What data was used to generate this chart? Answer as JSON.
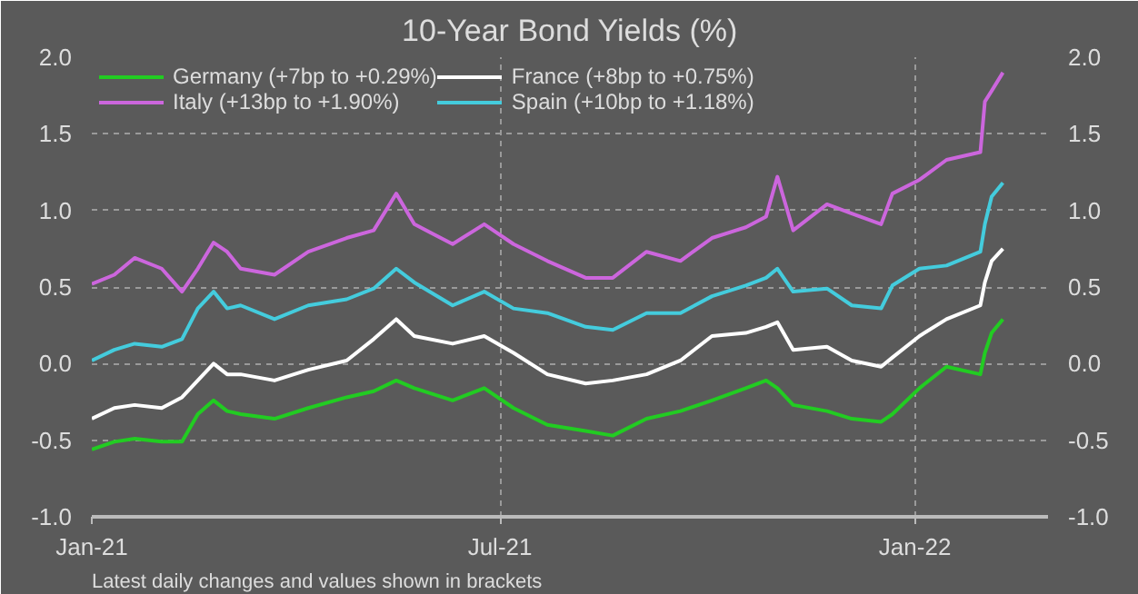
{
  "chart_data": {
    "type": "line",
    "title": "10-Year Bond Yields (%)",
    "x": [
      "2021-01-01",
      "2021-01-11",
      "2021-01-20",
      "2021-02-01",
      "2021-02-10",
      "2021-02-17",
      "2021-02-24",
      "2021-03-02",
      "2021-03-08",
      "2021-03-23",
      "2021-04-07",
      "2021-04-24",
      "2021-05-06",
      "2021-05-16",
      "2021-05-24",
      "2021-06-10",
      "2021-06-24",
      "2021-07-07",
      "2021-07-22",
      "2021-08-08",
      "2021-08-20",
      "2021-09-04",
      "2021-09-19",
      "2021-10-03",
      "2021-10-18",
      "2021-10-27",
      "2021-11-01",
      "2021-11-08",
      "2021-11-23",
      "2021-12-04",
      "2021-12-17",
      "2021-12-22",
      "2022-01-03",
      "2022-01-15",
      "2022-01-30",
      "2022-02-01",
      "2022-02-04",
      "2022-02-09"
    ],
    "series": [
      {
        "name": "Germany (+7bp to +0.29%)",
        "color": "#22cc22",
        "values": [
          -0.56,
          -0.51,
          -0.49,
          -0.51,
          -0.51,
          -0.33,
          -0.24,
          -0.31,
          -0.33,
          -0.36,
          -0.29,
          -0.22,
          -0.18,
          -0.11,
          -0.16,
          -0.24,
          -0.16,
          -0.29,
          -0.4,
          -0.44,
          -0.47,
          -0.36,
          -0.31,
          -0.24,
          -0.16,
          -0.11,
          -0.16,
          -0.27,
          -0.31,
          -0.36,
          -0.38,
          -0.33,
          -0.16,
          -0.02,
          -0.07,
          0.07,
          0.2,
          0.29
        ]
      },
      {
        "name": "France (+8bp to +0.75%)",
        "color": "#ffffff",
        "values": [
          -0.36,
          -0.29,
          -0.27,
          -0.29,
          -0.22,
          -0.11,
          0.0,
          -0.07,
          -0.07,
          -0.11,
          -0.04,
          0.02,
          0.16,
          0.29,
          0.18,
          0.13,
          0.18,
          0.07,
          -0.07,
          -0.13,
          -0.11,
          -0.07,
          0.02,
          0.18,
          0.2,
          0.24,
          0.27,
          0.09,
          0.11,
          0.02,
          -0.02,
          0.04,
          0.18,
          0.29,
          0.38,
          0.53,
          0.67,
          0.75
        ]
      },
      {
        "name": "Italy (+13bp to +1.90%)",
        "color": "#cc66dd",
        "values": [
          0.52,
          0.58,
          0.69,
          0.62,
          0.47,
          0.62,
          0.79,
          0.73,
          0.62,
          0.58,
          0.73,
          0.82,
          0.87,
          1.11,
          0.91,
          0.78,
          0.91,
          0.78,
          0.67,
          0.56,
          0.56,
          0.73,
          0.67,
          0.82,
          0.89,
          0.96,
          1.22,
          0.87,
          1.04,
          0.98,
          0.91,
          1.11,
          1.2,
          1.33,
          1.38,
          1.71,
          1.78,
          1.9
        ]
      },
      {
        "name": "Spain (+10bp to +1.18%)",
        "color": "#44ccdd",
        "values": [
          0.02,
          0.09,
          0.13,
          0.11,
          0.16,
          0.36,
          0.47,
          0.36,
          0.38,
          0.29,
          0.38,
          0.42,
          0.49,
          0.62,
          0.53,
          0.38,
          0.47,
          0.36,
          0.33,
          0.24,
          0.22,
          0.33,
          0.33,
          0.44,
          0.51,
          0.56,
          0.62,
          0.47,
          0.49,
          0.38,
          0.36,
          0.51,
          0.62,
          0.64,
          0.73,
          0.91,
          1.09,
          1.18
        ]
      }
    ],
    "xlim": [
      "2021-01-01",
      "2022-03-01"
    ],
    "xticks": [
      {
        "value": "2021-01-01",
        "label": "Jan-21"
      },
      {
        "value": "2021-07-01",
        "label": "Jul-21"
      },
      {
        "value": "2022-01-01",
        "label": "Jan-22"
      }
    ],
    "ylim": [
      -1.0,
      2.0
    ],
    "yticks": [
      {
        "value": -1.0,
        "label": "-1.0"
      },
      {
        "value": -0.5,
        "label": "-0.5"
      },
      {
        "value": 0.0,
        "label": "0.0"
      },
      {
        "value": 0.5,
        "label": "0.5"
      },
      {
        "value": 1.0,
        "label": "1.0"
      },
      {
        "value": 1.5,
        "label": "1.5"
      },
      {
        "value": 2.0,
        "label": "2.0"
      }
    ],
    "y2lim": [
      -1.0,
      2.0
    ],
    "y2ticks": [
      {
        "value": -1.0,
        "label": "-1.0"
      },
      {
        "value": -0.5,
        "label": "-0.5"
      },
      {
        "value": 0.0,
        "label": "0.0"
      },
      {
        "value": 0.5,
        "label": "0.5"
      },
      {
        "value": 1.0,
        "label": "1.0"
      },
      {
        "value": 1.5,
        "label": "1.5"
      },
      {
        "value": 2.0,
        "label": "2.0"
      }
    ],
    "grid": true,
    "legend": "top left",
    "marker": "none",
    "line_style": "solid",
    "annotations": [
      "Latest daily changes and values shown in brackets"
    ]
  }
}
